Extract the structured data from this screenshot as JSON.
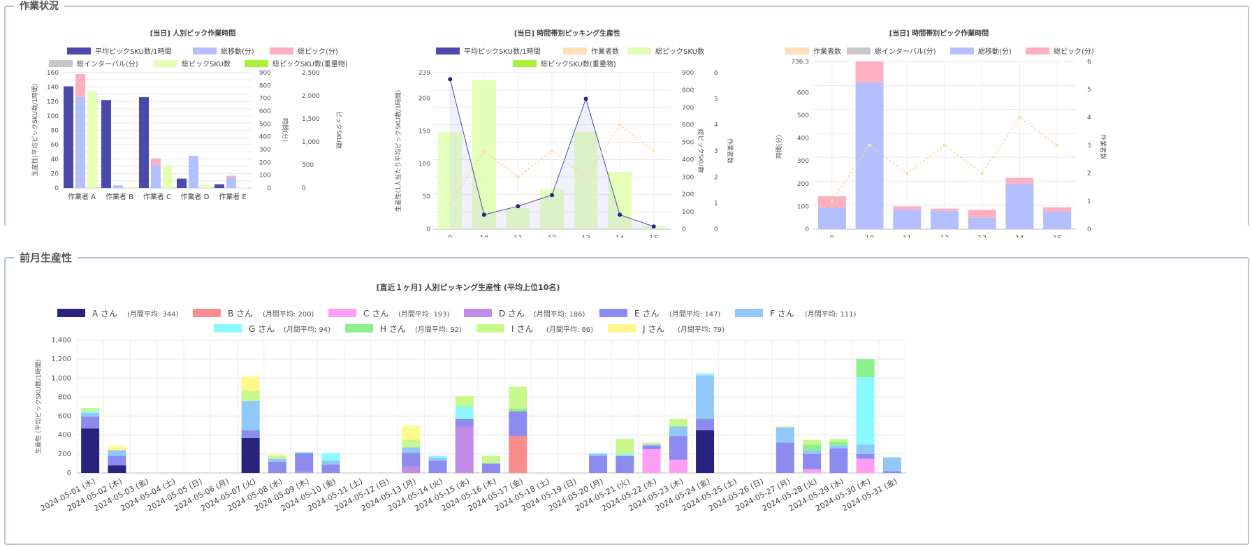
{
  "sections": {
    "current": "作業状況",
    "previous": "前月生産性"
  },
  "chart_data": [
    {
      "id": "c1",
      "type": "bar",
      "title": "[当日] 人別ピック作業時間",
      "categories": [
        "作業者 A",
        "作業者 B",
        "作業者 C",
        "作業者 D",
        "作業者 E"
      ],
      "legend": [
        {
          "name": "平均ピックSKU数/1時間",
          "color": "#4b4aab"
        },
        {
          "name": "総移動(分)",
          "color": "#b3bfff"
        },
        {
          "name": "総ピック(分)",
          "color": "#ffb0c0"
        },
        {
          "name": "総インターバル(分)",
          "color": "#c8c8c8"
        },
        {
          "name": "総ピックSKU数",
          "color": "#e4ffb3"
        },
        {
          "name": "総ピックSKU数(重量物)",
          "color": "#a8f03c"
        }
      ],
      "series": [
        {
          "name": "平均ピックSKU数/1時間",
          "axis": "left",
          "values": [
            141,
            122,
            126,
            13,
            5
          ]
        },
        {
          "name": "総移動(分)",
          "axis": "mid",
          "values": [
            710,
            20,
            180,
            250,
            80
          ]
        },
        {
          "name": "総ピック(分)",
          "axis": "mid",
          "values": [
            180,
            0,
            50,
            0,
            15
          ]
        },
        {
          "name": "総ピックSKU数",
          "axis": "right",
          "values": [
            2100,
            20,
            480,
            60,
            10
          ]
        }
      ],
      "y_left": {
        "label": "生産性(平均ピックSKU数/1時間)",
        "ylim": [
          0,
          160
        ],
        "ticks": [
          "0",
          "20",
          "40",
          "60",
          "80",
          "100",
          "120",
          "140",
          "160"
        ]
      },
      "y_mid": {
        "label": "時間(分)",
        "ylim": [
          0,
          900
        ],
        "ticks": [
          "0",
          "100",
          "200",
          "300",
          "400",
          "500",
          "600",
          "700",
          "800",
          "900"
        ]
      },
      "y_right": {
        "label": "ピックSKU数",
        "ylim": [
          0,
          2500
        ],
        "ticks": [
          "0",
          "500",
          "1,000",
          "1,500",
          "2,000",
          "2,500"
        ]
      }
    },
    {
      "id": "c2",
      "type": "bar+line",
      "title": "[当日] 時間帯別ピッキング生産性",
      "categories": [
        "9",
        "10",
        "11",
        "12",
        "13",
        "14",
        "15"
      ],
      "legend": [
        {
          "name": "平均ピックSKU数/1時間",
          "color": "#4b4aab"
        },
        {
          "name": "作業者数",
          "color": "#ffe0b8"
        },
        {
          "name": "総ピックSKU数",
          "color": "#e0ffb3"
        },
        {
          "name": "総ピックSKU数(重量物)",
          "color": "#a8f03c"
        }
      ],
      "series": [
        {
          "name": "平均ピックSKU数/1時間",
          "axis": "left",
          "values": [
            229,
            22,
            35,
            52,
            199,
            22,
            4
          ]
        },
        {
          "name": "作業者数",
          "axis": "right2",
          "values": [
            1,
            3,
            2,
            3,
            2,
            4,
            3
          ]
        },
        {
          "name": "総ピックSKU数",
          "axis": "right1",
          "values": [
            560,
            860,
            120,
            230,
            560,
            330,
            20
          ]
        }
      ],
      "y_left": {
        "label": "生産性(1人当たり平均ピックSKU数/1時間)",
        "ylim": [
          0,
          239
        ],
        "ticks": [
          "0",
          "50",
          "100",
          "150",
          "200",
          "239"
        ]
      },
      "y_right1": {
        "label": "総ピックSKU数",
        "ylim": [
          0,
          900
        ],
        "ticks": [
          "0",
          "100",
          "200",
          "300",
          "400",
          "500",
          "600",
          "700",
          "800",
          "900"
        ]
      },
      "y_right2": {
        "label": "作業者数",
        "ylim": [
          0,
          6
        ],
        "ticks": [
          "0",
          "1",
          "2",
          "3",
          "4",
          "5",
          "6"
        ]
      }
    },
    {
      "id": "c3",
      "type": "bar+line",
      "title": "[当日] 時間帯別ピック作業時間",
      "categories": [
        "9",
        "10",
        "11",
        "12",
        "13",
        "14",
        "15"
      ],
      "legend": [
        {
          "name": "作業者数",
          "color": "#ffe0b8"
        },
        {
          "name": "総インターバル(分)",
          "color": "#c8c8c8"
        },
        {
          "name": "総移動(分)",
          "color": "#b3bfff"
        },
        {
          "name": "総ピック(分)",
          "color": "#ffb0c0"
        }
      ],
      "series": [
        {
          "name": "総移動(分)",
          "values": [
            95,
            645,
            85,
            80,
            50,
            200,
            78
          ]
        },
        {
          "name": "総ピック(分)",
          "values": [
            50,
            92,
            15,
            10,
            35,
            25,
            18
          ]
        },
        {
          "name": "作業者数",
          "axis": "right",
          "values": [
            1,
            3,
            2,
            3,
            2,
            4,
            3
          ]
        }
      ],
      "y_left": {
        "label": "時間(分)",
        "ylim": [
          0,
          736.3
        ],
        "ticks": [
          "0",
          "100",
          "200",
          "300",
          "400",
          "500",
          "600",
          "736.3"
        ]
      },
      "y_right": {
        "label": "作業者数",
        "ylim": [
          0,
          6
        ],
        "ticks": [
          "0",
          "1",
          "2",
          "3",
          "4",
          "5",
          "6"
        ]
      }
    },
    {
      "id": "c4",
      "type": "stacked-bar",
      "title": "[直近１ヶ月] 人別ピッキング生産性 (平均上位10名)",
      "ylabel": "生産性 (平均ピックSKU数/1時間)",
      "ylim": [
        0,
        1400
      ],
      "yticks": [
        "0",
        "200",
        "400",
        "600",
        "800",
        "1,000",
        "1,200",
        "1,400"
      ],
      "categories": [
        "2024-05-01 (水)",
        "2024-05-02 (木)",
        "2024-05-03 (金)",
        "2024-05-04 (土)",
        "2024-05-05 (日)",
        "2024-05-06 (月)",
        "2024-05-07 (火)",
        "2024-05-08 (水)",
        "2024-05-09 (木)",
        "2024-05-10 (金)",
        "2024-05-11 (土)",
        "2024-05-12 (日)",
        "2024-05-13 (月)",
        "2024-05-14 (火)",
        "2024-05-15 (水)",
        "2024-05-16 (木)",
        "2024-05-17 (金)",
        "2024-05-18 (土)",
        "2024-05-19 (日)",
        "2024-05-20 (月)",
        "2024-05-21 (火)",
        "2024-05-22 (水)",
        "2024-05-23 (木)",
        "2024-05-24 (金)",
        "2024-05-25 (土)",
        "2024-05-26 (日)",
        "2024-05-27 (月)",
        "2024-05-28 (火)",
        "2024-05-29 (水)",
        "2024-05-30 (木)",
        "2024-05-31 (金)"
      ],
      "series": [
        {
          "name": "A さん",
          "avg": "(月間平均: 344)",
          "color": "#27237f",
          "values": [
            470,
            80,
            0,
            0,
            0,
            0,
            370,
            0,
            0,
            0,
            0,
            0,
            0,
            0,
            0,
            0,
            0,
            0,
            0,
            0,
            0,
            0,
            0,
            450,
            0,
            0,
            0,
            0,
            0,
            0,
            0
          ]
        },
        {
          "name": "B さん",
          "avg": "(月間平均: 200)",
          "color": "#fb8c8c",
          "values": [
            0,
            0,
            0,
            0,
            0,
            0,
            0,
            0,
            0,
            0,
            0,
            0,
            0,
            0,
            0,
            0,
            390,
            0,
            0,
            0,
            0,
            0,
            0,
            0,
            0,
            0,
            0,
            0,
            0,
            0,
            0
          ]
        },
        {
          "name": "C さん",
          "avg": "(月間平均: 193)",
          "color": "#ff9ef5",
          "values": [
            0,
            0,
            0,
            0,
            0,
            0,
            0,
            0,
            0,
            0,
            0,
            0,
            0,
            0,
            0,
            0,
            0,
            0,
            0,
            0,
            0,
            250,
            140,
            0,
            0,
            0,
            0,
            40,
            0,
            150,
            0
          ]
        },
        {
          "name": "D さん",
          "avg": "(月間平均: 186)",
          "color": "#c08ce8",
          "values": [
            0,
            0,
            0,
            0,
            0,
            0,
            0,
            0,
            10,
            0,
            0,
            0,
            70,
            0,
            490,
            0,
            0,
            0,
            0,
            0,
            0,
            0,
            0,
            0,
            0,
            0,
            0,
            0,
            0,
            0,
            0
          ]
        },
        {
          "name": "E さん",
          "avg": "(月間平均: 147)",
          "color": "#8c8cf0",
          "values": [
            125,
            100,
            0,
            0,
            0,
            0,
            80,
            120,
            200,
            90,
            0,
            0,
            140,
            130,
            80,
            100,
            260,
            0,
            0,
            180,
            180,
            40,
            250,
            120,
            0,
            0,
            320,
            160,
            260,
            50,
            20
          ]
        },
        {
          "name": "F さん",
          "avg": "(月間平均: 111)",
          "color": "#90c8f8",
          "values": [
            40,
            60,
            0,
            0,
            0,
            0,
            310,
            30,
            0,
            40,
            0,
            0,
            60,
            30,
            0,
            0,
            0,
            0,
            0,
            20,
            0,
            10,
            100,
            460,
            0,
            0,
            160,
            40,
            30,
            100,
            145
          ]
        },
        {
          "name": "G さん",
          "avg": "(月間平均: 94)",
          "color": "#8cf8ff",
          "values": [
            20,
            0,
            0,
            0,
            0,
            0,
            0,
            0,
            10,
            80,
            0,
            0,
            0,
            20,
            130,
            0,
            0,
            0,
            0,
            10,
            20,
            0,
            0,
            20,
            0,
            0,
            0,
            0,
            0,
            710,
            0
          ]
        },
        {
          "name": "H さん",
          "avg": "(月間平均: 92)",
          "color": "#8cf08c",
          "values": [
            0,
            0,
            0,
            0,
            0,
            0,
            0,
            0,
            0,
            0,
            0,
            0,
            0,
            0,
            0,
            0,
            30,
            0,
            0,
            0,
            0,
            0,
            0,
            0,
            0,
            0,
            0,
            60,
            40,
            190,
            0
          ]
        },
        {
          "name": "I さん",
          "avg": "(月間平均: 86)",
          "color": "#c8f88c",
          "values": [
            30,
            0,
            0,
            0,
            0,
            0,
            110,
            30,
            0,
            0,
            0,
            0,
            80,
            0,
            110,
            80,
            230,
            0,
            0,
            0,
            160,
            20,
            80,
            0,
            0,
            0,
            10,
            50,
            30,
            0,
            0
          ]
        },
        {
          "name": "J さん",
          "avg": "(月間平均: 79)",
          "color": "#fff88c",
          "values": [
            0,
            40,
            0,
            0,
            0,
            0,
            150,
            10,
            0,
            0,
            0,
            0,
            150,
            0,
            0,
            0,
            0,
            0,
            0,
            0,
            0,
            0,
            0,
            0,
            0,
            0,
            0,
            0,
            0,
            0,
            0
          ]
        }
      ]
    }
  ]
}
